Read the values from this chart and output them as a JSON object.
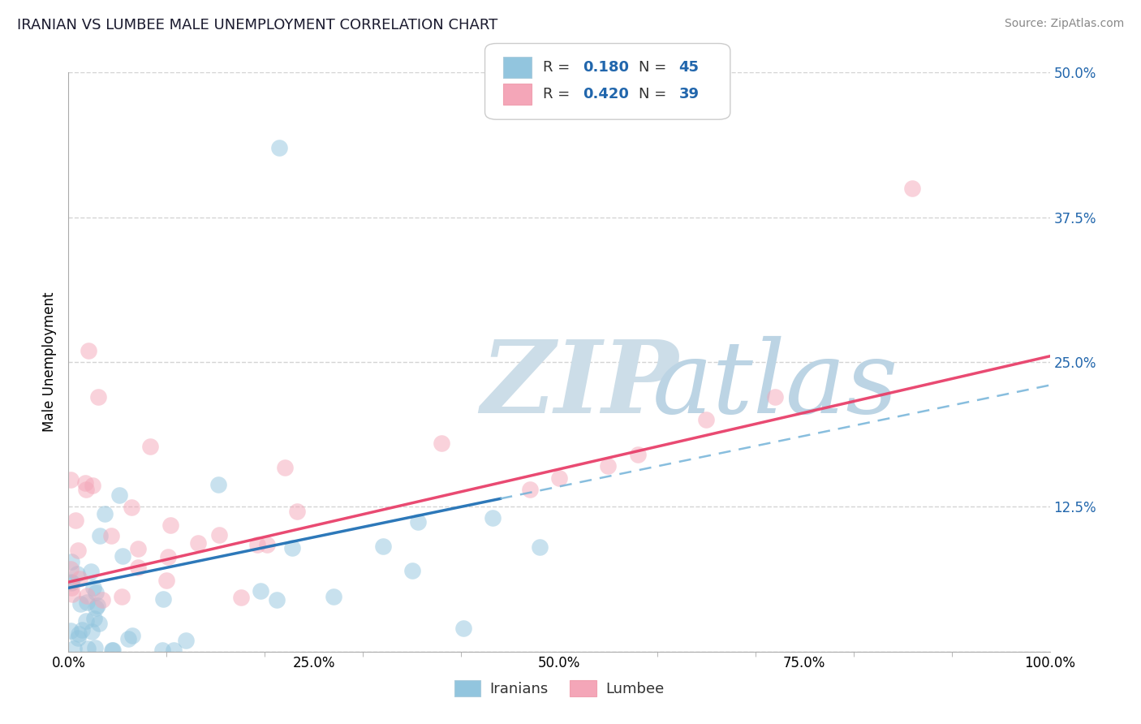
{
  "title": "IRANIAN VS LUMBEE MALE UNEMPLOYMENT CORRELATION CHART",
  "source_text": "Source: ZipAtlas.com",
  "ylabel": "Male Unemployment",
  "xlim": [
    0,
    1
  ],
  "ylim": [
    0,
    0.5
  ],
  "iranians_color": "#92c5de",
  "lumbee_color": "#f4a6b8",
  "iranians_R": 0.18,
  "iranians_N": 45,
  "lumbee_R": 0.42,
  "lumbee_N": 39,
  "watermark_zip": "ZIP",
  "watermark_atlas": "atlas",
  "watermark_zip_color": "#c5d8e8",
  "watermark_atlas_color": "#c8dce8",
  "background_color": "#ffffff",
  "grid_color": "#d0d0d0",
  "trend_blue": "#2171b5",
  "trend_pink": "#e8406a",
  "legend_blue_color": "#2166ac",
  "tick_blue_color": "#2166ac"
}
